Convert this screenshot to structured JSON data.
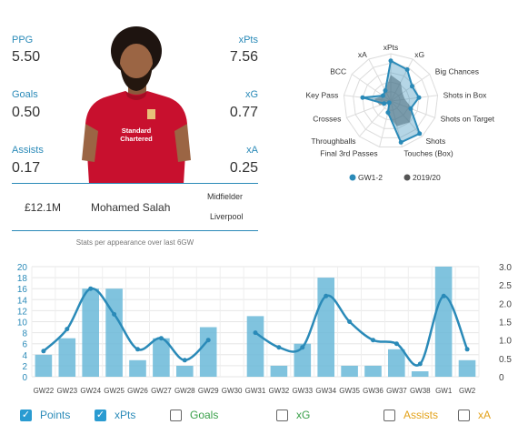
{
  "stats_left": [
    {
      "label": "PPG",
      "value": "5.50"
    },
    {
      "label": "Goals",
      "value": "0.50"
    },
    {
      "label": "Assists",
      "value": "0.17"
    }
  ],
  "stats_right": [
    {
      "label": "xPts",
      "value": "7.56"
    },
    {
      "label": "xG",
      "value": "0.77"
    },
    {
      "label": "xA",
      "value": "0.25"
    }
  ],
  "player": {
    "price": "£12.1M",
    "name": "Mohamed Salah",
    "position": "Midfielder",
    "team": "Liverpool",
    "note": "Stats per appearance over last 6GW",
    "shirt_text": "Standard Chartered"
  },
  "radar": {
    "axes": [
      "xPts",
      "xG",
      "Big Chances",
      "Shots in Box",
      "Shots on Target",
      "Shots",
      "Touches (Box)",
      "Final 3rd Passes",
      "Throughballs",
      "Crosses",
      "Key Pass",
      "BCC",
      "xA"
    ],
    "legend": [
      {
        "name": "GW1-2",
        "color": "#2a8ab8"
      },
      {
        "name": "2019/20",
        "color": "#555555"
      }
    ],
    "series_gw": [
      0.85,
      0.75,
      0.55,
      0.6,
      0.45,
      0.92,
      0.9,
      0.25,
      0.05,
      0.15,
      0.6,
      0.2,
      0.25
    ],
    "series_season": [
      0.55,
      0.45,
      0.3,
      0.3,
      0.5,
      0.6,
      0.55,
      0.3,
      0.05,
      0.25,
      0.35,
      0.2,
      0.25
    ]
  },
  "chart_data": {
    "type": "bar",
    "categories": [
      "GW22",
      "GW23",
      "GW24",
      "GW25",
      "GW26",
      "GW27",
      "GW28",
      "GW29",
      "GW30",
      "GW31",
      "GW32",
      "GW33",
      "GW34",
      "GW35",
      "GW36",
      "GW37",
      "GW38",
      "GW1",
      "GW2"
    ],
    "series": [
      {
        "name": "Points",
        "type": "bar",
        "axis": "left",
        "values": [
          4,
          7,
          16,
          16,
          3,
          7,
          2,
          9,
          0,
          11,
          2,
          6,
          18,
          2,
          2,
          5,
          1,
          20,
          3
        ]
      },
      {
        "name": "xPts",
        "type": "line",
        "axis": "right",
        "values": [
          0.7,
          1.3,
          2.4,
          1.7,
          0.75,
          1.05,
          0.45,
          1.0,
          null,
          1.2,
          0.8,
          0.8,
          2.2,
          1.5,
          1.0,
          0.9,
          0.35,
          2.2,
          0.75
        ]
      }
    ],
    "ylim_left": [
      0,
      20
    ],
    "ylim_right": [
      0,
      3
    ],
    "left_ticks": [
      "0",
      "2",
      "4",
      "6",
      "8",
      "10",
      "12",
      "14",
      "16",
      "18",
      "20"
    ],
    "right_ticks": [
      "0",
      "0.5",
      "1.0",
      "1.5",
      "2.0",
      "2.5",
      "3.0"
    ],
    "grid": true
  },
  "toggles": [
    {
      "label": "Points",
      "checked": true,
      "color": "#2a8ab8"
    },
    {
      "label": "xPts",
      "checked": true,
      "color": "#2a8ab8"
    },
    {
      "label": "Goals",
      "checked": false,
      "color": "#3aa04a"
    },
    {
      "label": "xG",
      "checked": false,
      "color": "#3aa04a"
    },
    {
      "label": "Assists",
      "checked": false,
      "color": "#e3a21a"
    },
    {
      "label": "xA",
      "checked": false,
      "color": "#e3a21a"
    }
  ]
}
